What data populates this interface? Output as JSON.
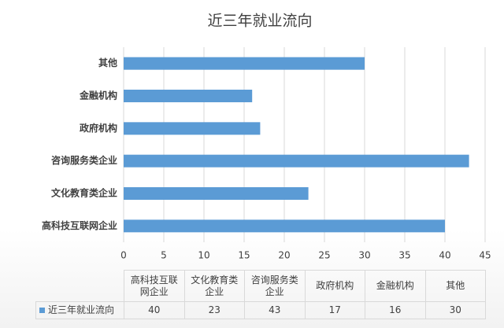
{
  "chart_data": {
    "type": "bar",
    "orientation": "horizontal",
    "title": "近三年就业流向",
    "categories": [
      "高科技互联网企业",
      "文化教育类企业",
      "咨询服务类企业",
      "政府机构",
      "金融机构",
      "其他"
    ],
    "series": [
      {
        "name": "近三年就业流向",
        "color": "#5b9bd5",
        "values": [
          40,
          23,
          43,
          17,
          16,
          30
        ]
      }
    ],
    "xlim": [
      0,
      45
    ],
    "xticks": [
      0,
      5,
      10,
      15,
      20,
      25,
      30,
      35,
      40,
      45
    ],
    "grid": true,
    "data_table": true
  }
}
